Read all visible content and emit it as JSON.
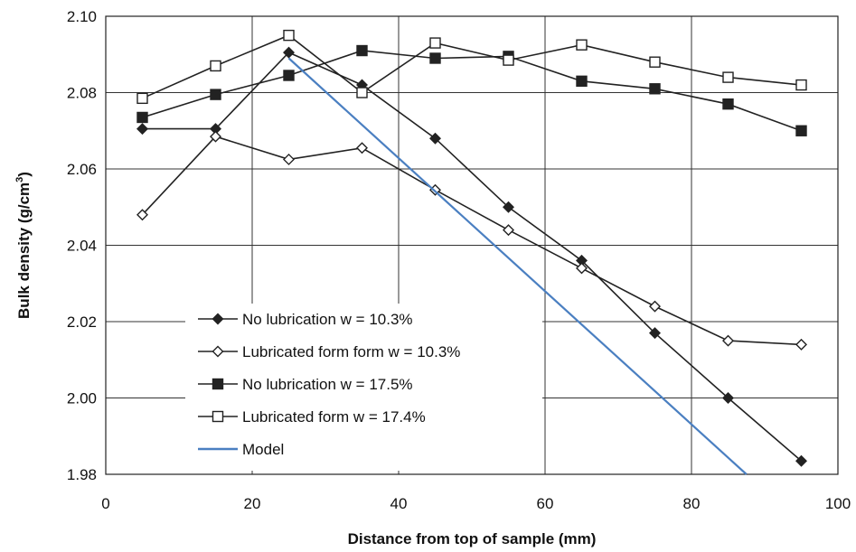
{
  "chart_data": {
    "type": "line",
    "xlabel": "Distance from top of sample (mm)",
    "ylabel_main": "Bulk density (g/cm",
    "ylabel_sup": "3",
    "ylabel_close": ")",
    "xlim": [
      0,
      100
    ],
    "ylim": [
      1.98,
      2.1
    ],
    "xticks": [
      0,
      20,
      40,
      60,
      80,
      100
    ],
    "yticks": [
      1.98,
      2.0,
      2.02,
      2.04,
      2.06,
      2.08,
      2.1
    ],
    "xtick_labels": [
      "0",
      "20",
      "40",
      "60",
      "80",
      "100"
    ],
    "ytick_labels": [
      "1.98",
      "2.00",
      "2.02",
      "2.04",
      "2.06",
      "2.08",
      "2.10"
    ],
    "grid": true,
    "legend_position": "bottom-left",
    "series": [
      {
        "name": "No lubrication w = 10.3%",
        "marker": "filled-diamond",
        "color": "#222222",
        "x": [
          5,
          15,
          25,
          35,
          45,
          55,
          65,
          75,
          85,
          95
        ],
        "y": [
          2.0705,
          2.0705,
          2.0905,
          2.082,
          2.068,
          2.05,
          2.036,
          2.017,
          2.0,
          1.9835
        ]
      },
      {
        "name": "Lubricated form form w = 10.3%",
        "marker": "open-diamond",
        "color": "#222222",
        "x": [
          5,
          15,
          25,
          35,
          45,
          55,
          65,
          75,
          85,
          95
        ],
        "y": [
          2.048,
          2.0685,
          2.0625,
          2.0655,
          2.0545,
          2.044,
          2.034,
          2.024,
          2.015,
          2.014
        ]
      },
      {
        "name": "No lubrication w = 17.5%",
        "marker": "filled-square",
        "color": "#222222",
        "x": [
          5,
          15,
          25,
          35,
          45,
          55,
          65,
          75,
          85,
          95
        ],
        "y": [
          2.0735,
          2.0795,
          2.0845,
          2.091,
          2.089,
          2.0895,
          2.083,
          2.081,
          2.077,
          2.07
        ]
      },
      {
        "name": "Lubricated form w = 17.4%",
        "marker": "open-square",
        "color": "#222222",
        "x": [
          5,
          15,
          25,
          35,
          45,
          55,
          65,
          75,
          85,
          95
        ],
        "y": [
          2.0785,
          2.087,
          2.095,
          2.08,
          2.093,
          2.0885,
          2.0925,
          2.088,
          2.084,
          2.082
        ]
      },
      {
        "name": "Model",
        "marker": "none",
        "color": "#4a7fc1",
        "x": [
          25,
          87.5
        ],
        "y": [
          2.089,
          1.98
        ]
      }
    ]
  }
}
